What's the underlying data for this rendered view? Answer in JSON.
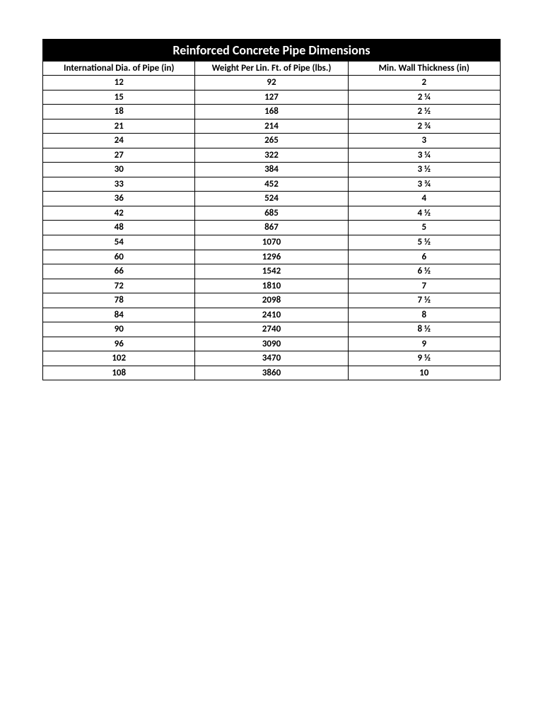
{
  "table": {
    "title": "Reinforced Concrete Pipe Dimensions",
    "columns": [
      "International Dia. of Pipe (in)",
      "Weight Per Lin. Ft. of Pipe (lbs.)",
      "Min. Wall Thickness (in)"
    ],
    "column_widths": [
      "33.3%",
      "33.4%",
      "33.3%"
    ],
    "rows": [
      [
        "12",
        "92",
        "2"
      ],
      [
        "15",
        "127",
        "2 ¼"
      ],
      [
        "18",
        "168",
        "2 ½"
      ],
      [
        "21",
        "214",
        "2 ¾"
      ],
      [
        "24",
        "265",
        "3"
      ],
      [
        "27",
        "322",
        "3 ¼"
      ],
      [
        "30",
        "384",
        "3 ½"
      ],
      [
        "33",
        "452",
        "3 ¾"
      ],
      [
        "36",
        "524",
        "4"
      ],
      [
        "42",
        "685",
        "4 ½"
      ],
      [
        "48",
        "867",
        "5"
      ],
      [
        "54",
        "1070",
        "5 ½"
      ],
      [
        "60",
        "1296",
        "6"
      ],
      [
        "66",
        "1542",
        "6 ½"
      ],
      [
        "72",
        "1810",
        "7"
      ],
      [
        "78",
        "2098",
        "7 ½"
      ],
      [
        "84",
        "2410",
        "8"
      ],
      [
        "90",
        "2740",
        "8 ½"
      ],
      [
        "96",
        "3090",
        "9"
      ],
      [
        "102",
        "3470",
        "9 ½"
      ],
      [
        "108",
        "3860",
        "10"
      ]
    ],
    "title_fontsize": 18,
    "header_fontsize": 13,
    "cell_fontsize": 13,
    "title_bg": "#000000",
    "title_color": "#ffffff",
    "border_color": "#000000",
    "cell_bg": "#ffffff",
    "cell_color": "#000000"
  }
}
